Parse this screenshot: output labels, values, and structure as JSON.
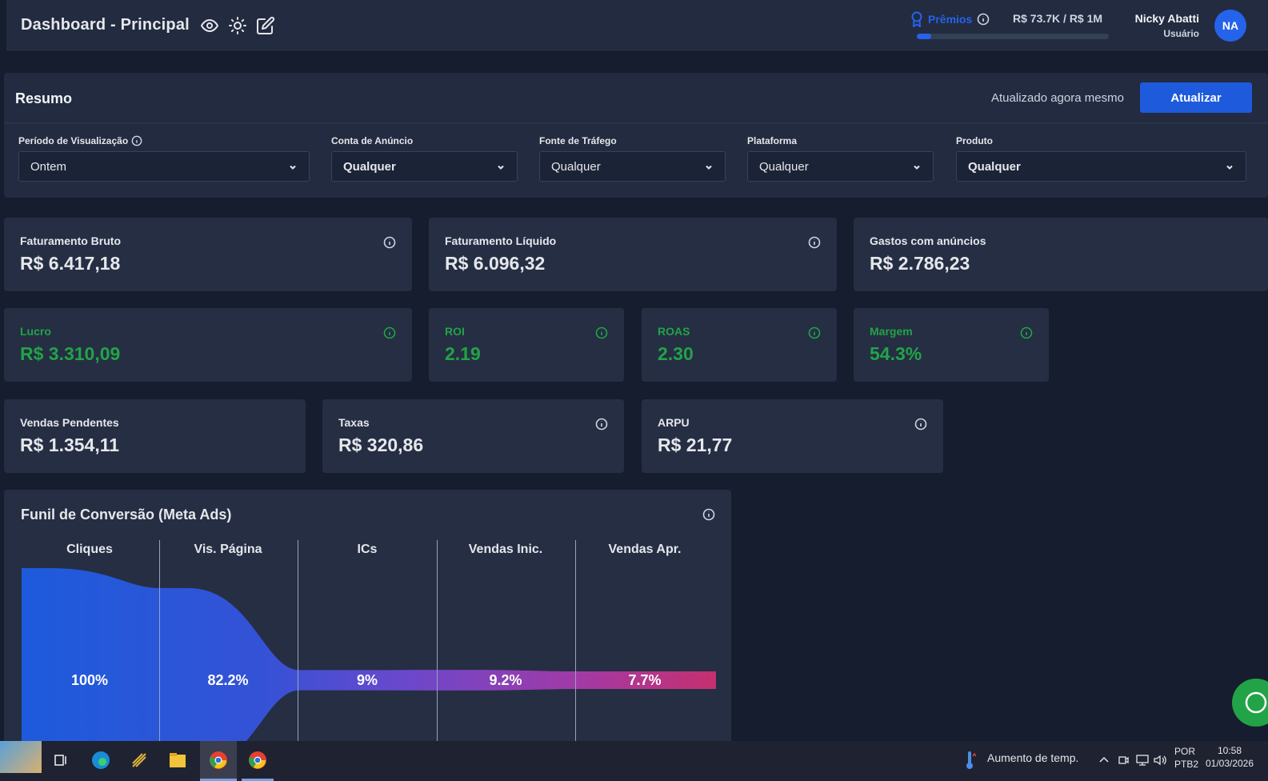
{
  "header": {
    "title": "Dashboard - Principal",
    "rewards_label": "Prêmios",
    "rewards_value": "R$ 73.7K / R$ 1M",
    "rewards_progress_fraction": 0.074,
    "user_name": "Nicky Abatti",
    "user_role": "Usuário",
    "avatar_initials": "NA",
    "icons": [
      "eye-icon",
      "sun-icon",
      "edit-icon",
      "award-icon",
      "info-icon"
    ]
  },
  "summary": {
    "title": "Resumo",
    "updated_text": "Atualizado agora mesmo",
    "update_button": "Atualizar",
    "filters": [
      {
        "label": "Período de Visualização",
        "value": "Ontem"
      },
      {
        "label": "Conta de Anúncio",
        "value": "Qualquer"
      },
      {
        "label": "Fonte de Tráfego",
        "value": "Qualquer"
      },
      {
        "label": "Plataforma",
        "value": "Qualquer"
      },
      {
        "label": "Produto",
        "value": "Qualquer"
      }
    ]
  },
  "metrics": {
    "row1": [
      {
        "label": "Faturamento Bruto",
        "value": "R$ 6.417,18"
      },
      {
        "label": "Faturamento Líquido",
        "value": "R$ 6.096,32"
      },
      {
        "label": "Gastos com anúncios",
        "value": "R$ 2.786,23"
      }
    ],
    "row2": [
      {
        "label": "Lucro",
        "value": "R$ 3.310,09"
      },
      {
        "label": "ROI",
        "value": "2.19"
      },
      {
        "label": "ROAS",
        "value": "2.30"
      },
      {
        "label": "Margem",
        "value": "54.3%"
      }
    ],
    "row3": [
      {
        "label": "Vendas Pendentes",
        "value": "R$ 1.354,11"
      },
      {
        "label": "Taxas",
        "value": "R$ 320,86"
      },
      {
        "label": "ARPU",
        "value": "R$ 21,77"
      }
    ]
  },
  "funnel": {
    "title": "Funil de Conversão (Meta Ads)",
    "stages": [
      {
        "label": "Cliques",
        "percent": "100%",
        "fraction": 1.0
      },
      {
        "label": "Vis. Página",
        "percent": "82.2%",
        "fraction": 0.822
      },
      {
        "label": "ICs",
        "percent": "9%",
        "fraction": 0.09
      },
      {
        "label": "Vendas Inic.",
        "percent": "9.2%",
        "fraction": 0.092
      },
      {
        "label": "Vendas Apr.",
        "percent": "7.7%",
        "fraction": 0.077
      }
    ],
    "colors": [
      "#1d5bdc",
      "#2f52d8",
      "#5a4bd0",
      "#8e3cb8",
      "#c5306f"
    ]
  },
  "taskbar": {
    "weather": "Aumento de temp.",
    "lang_line1": "POR",
    "lang_line2": "PTB2",
    "time": "10:58",
    "date": "01/03/2026"
  }
}
